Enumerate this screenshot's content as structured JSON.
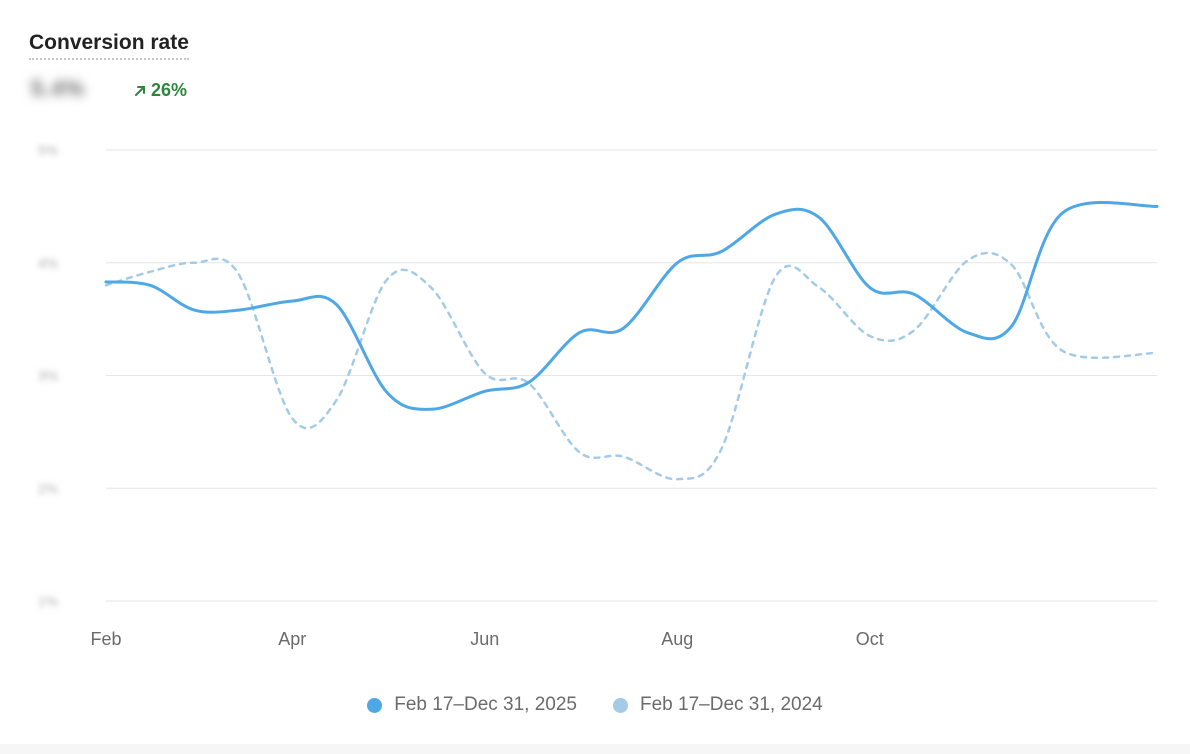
{
  "header": {
    "title": "Conversion rate",
    "value": "5.4%",
    "change": "26%",
    "change_color": "#2e8540"
  },
  "colors": {
    "current": "#4ea8e6",
    "previous": "#a3cbe8",
    "grid": "#e6e6e6",
    "axis_text": "#6b6b6b"
  },
  "chart_data": {
    "type": "line",
    "title": "Conversion rate",
    "x_axis": {
      "min": "2025-02-01",
      "max": "2025-12-31",
      "ticks": [
        "Feb",
        "Apr",
        "Jun",
        "Aug",
        "Oct"
      ]
    },
    "y_axis": {
      "min": 1,
      "max": 5,
      "ticks": [
        1,
        2,
        3,
        4,
        5
      ],
      "tick_labels_blurred": true
    },
    "grid": true,
    "legend_position": "bottom-center",
    "series": [
      {
        "name": "Feb 17–Dec 31, 2025",
        "style": "solid",
        "points": [
          [
            "2025-02-01",
            3.83
          ],
          [
            "2025-02-15",
            3.8
          ],
          [
            "2025-03-01",
            3.58
          ],
          [
            "2025-03-15",
            3.58
          ],
          [
            "2025-04-01",
            3.66
          ],
          [
            "2025-04-15",
            3.63
          ],
          [
            "2025-05-01",
            2.85
          ],
          [
            "2025-05-15",
            2.7
          ],
          [
            "2025-06-01",
            2.86
          ],
          [
            "2025-06-15",
            2.94
          ],
          [
            "2025-07-01",
            3.38
          ],
          [
            "2025-07-15",
            3.42
          ],
          [
            "2025-08-01",
            4.0
          ],
          [
            "2025-08-15",
            4.1
          ],
          [
            "2025-09-01",
            4.43
          ],
          [
            "2025-09-15",
            4.4
          ],
          [
            "2025-10-01",
            3.78
          ],
          [
            "2025-10-15",
            3.72
          ],
          [
            "2025-11-01",
            3.38
          ],
          [
            "2025-11-15",
            3.44
          ],
          [
            "2025-12-01",
            4.44
          ],
          [
            "2025-12-31",
            4.5
          ]
        ]
      },
      {
        "name": "Feb 17–Dec 31, 2024",
        "style": "dashed",
        "points": [
          [
            "2025-02-01",
            3.8
          ],
          [
            "2025-02-15",
            3.92
          ],
          [
            "2025-03-01",
            4.0
          ],
          [
            "2025-03-15",
            3.9
          ],
          [
            "2025-04-01",
            2.62
          ],
          [
            "2025-04-15",
            2.78
          ],
          [
            "2025-05-01",
            3.85
          ],
          [
            "2025-05-15",
            3.78
          ],
          [
            "2025-06-01",
            3.02
          ],
          [
            "2025-06-15",
            2.93
          ],
          [
            "2025-07-01",
            2.32
          ],
          [
            "2025-07-15",
            2.28
          ],
          [
            "2025-08-01",
            2.08
          ],
          [
            "2025-08-15",
            2.35
          ],
          [
            "2025-09-01",
            3.87
          ],
          [
            "2025-09-15",
            3.78
          ],
          [
            "2025-10-01",
            3.35
          ],
          [
            "2025-10-15",
            3.4
          ],
          [
            "2025-11-01",
            4.02
          ],
          [
            "2025-11-15",
            3.98
          ],
          [
            "2025-12-01",
            3.22
          ],
          [
            "2025-12-31",
            3.2
          ]
        ]
      }
    ]
  }
}
